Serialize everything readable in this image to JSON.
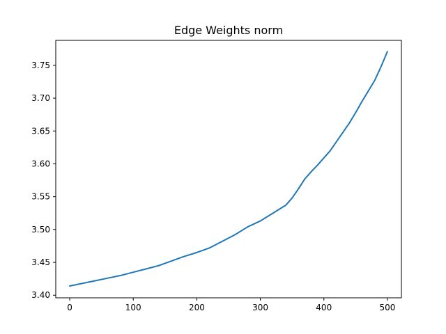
{
  "chart_data": {
    "type": "line",
    "title": "Edge Weights norm",
    "xlabel": "",
    "ylabel": "",
    "xlim": [
      -22,
      522
    ],
    "ylim": [
      3.396,
      3.788
    ],
    "xticks": [
      0,
      100,
      200,
      300,
      400,
      500
    ],
    "yticks": [
      3.4,
      3.45,
      3.5,
      3.55,
      3.6,
      3.65,
      3.7,
      3.75
    ],
    "xtick_labels": [
      "0",
      "100",
      "200",
      "300",
      "400",
      "500"
    ],
    "ytick_labels": [
      "3.40",
      "3.45",
      "3.50",
      "3.55",
      "3.60",
      "3.65",
      "3.70",
      "3.75"
    ],
    "grid": false,
    "color": "#1f77b4",
    "series": [
      {
        "x": [
          0,
          20,
          40,
          60,
          80,
          100,
          120,
          140,
          160,
          180,
          200,
          220,
          240,
          260,
          280,
          300,
          320,
          340,
          350,
          360,
          370,
          380,
          390,
          400,
          410,
          420,
          430,
          440,
          450,
          460,
          470,
          480,
          490,
          500
        ],
        "y": [
          3.414,
          3.418,
          3.422,
          3.426,
          3.43,
          3.435,
          3.44,
          3.445,
          3.452,
          3.459,
          3.465,
          3.472,
          3.482,
          3.492,
          3.504,
          3.513,
          3.525,
          3.537,
          3.548,
          3.562,
          3.577,
          3.588,
          3.598,
          3.609,
          3.62,
          3.634,
          3.648,
          3.662,
          3.678,
          3.695,
          3.711,
          3.727,
          3.748,
          3.771
        ]
      }
    ]
  }
}
